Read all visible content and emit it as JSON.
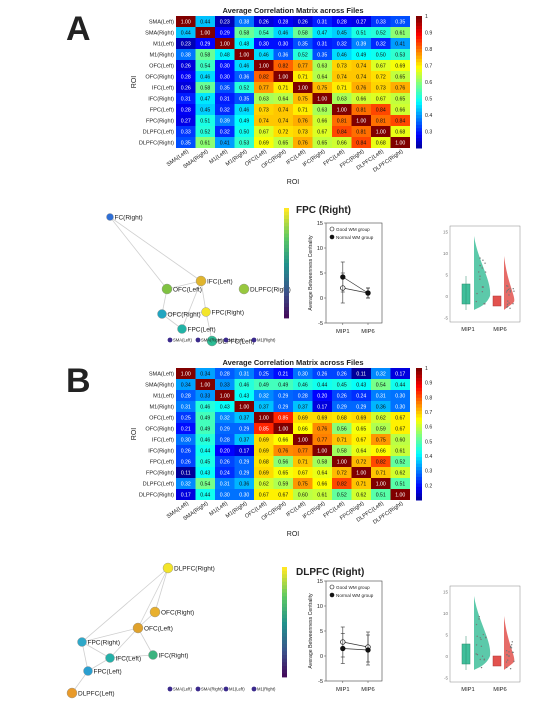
{
  "panels": [
    {
      "letter": "A",
      "heatmap": {
        "title": "Average Correlation Matrix across Files",
        "xlabel": "ROI",
        "ylabel": "ROI",
        "colorbar_ticks": [
          "1",
          "0.9",
          "0.8",
          "0.7",
          "0.6",
          "0.5",
          "0.4",
          "0.3"
        ],
        "colorbar_range": [
          0.2,
          1.0
        ]
      },
      "network": {
        "nodes": [
          {
            "label": "FC(Right)",
            "color": "#2f6fd6"
          },
          {
            "label": "IFC(Left)",
            "color": "#e0b52e"
          },
          {
            "label": "OFC(Left)",
            "color": "#7fc241"
          },
          {
            "label": "DLPFC(Right)",
            "color": "#98c83f"
          },
          {
            "label": "FPC(Right)",
            "color": "#f3e52a"
          },
          {
            "label": "OFC(Right)",
            "color": "#21a5c0"
          },
          {
            "label": "FPC(Left)",
            "color": "#22b3a6"
          },
          {
            "label": "DLPFC(Left)",
            "color": "#2cbd95"
          }
        ],
        "legend": [
          "SMA(Left)",
          "SMA(Right)",
          "M1(Left)",
          "M1(Right)"
        ]
      },
      "region_title": "FPC (Right)",
      "lineplot": {
        "ylabel": "Average Betweenness Centrality",
        "legend": [
          "Good WM group",
          "Normal WM group"
        ],
        "yticks": [
          "15",
          "10",
          "5",
          "0",
          "-5"
        ],
        "xticks": [
          "MIP1",
          "MIP6"
        ]
      },
      "raincloud": {
        "xticks": [
          "MIP1",
          "MIP6"
        ],
        "yticks": [
          "15",
          "10",
          "5",
          "0",
          "-5"
        ]
      }
    },
    {
      "letter": "B",
      "heatmap": {
        "title": "Average Correlation Matrix across Files",
        "xlabel": "ROI",
        "ylabel": "ROI",
        "colorbar_ticks": [
          "1",
          "0.9",
          "0.8",
          "0.7",
          "0.6",
          "0.5",
          "0.4",
          "0.3",
          "0.2"
        ],
        "colorbar_range": [
          0.1,
          1.0
        ]
      },
      "network": {
        "nodes": [
          {
            "label": "DLPFC(Right)",
            "color": "#f3e52a"
          },
          {
            "label": "OFC(Right)",
            "color": "#e8b02e"
          },
          {
            "label": "OFC(Left)",
            "color": "#e0a22c"
          },
          {
            "label": "FPC(Right)",
            "color": "#2fa8c8"
          },
          {
            "label": "IFC(Left)",
            "color": "#26b0a8"
          },
          {
            "label": "IFC(Right)",
            "color": "#3cb37f"
          },
          {
            "label": "FPC(Left)",
            "color": "#2a9fd0"
          },
          {
            "label": "DLPFC(Left)",
            "color": "#e89a2a"
          }
        ],
        "legend": [
          "SMA(Left)",
          "SMA(Right)",
          "M1(Left)",
          "M1(Right)"
        ]
      },
      "region_title": "DLPFC (Right)",
      "lineplot": {
        "ylabel": "Average Betweenness Centrality",
        "legend": [
          "Good WM group",
          "Normal WM group"
        ],
        "yticks": [
          "15",
          "10",
          "5",
          "0",
          "-5"
        ],
        "xticks": [
          "MIP1",
          "MIP6"
        ]
      },
      "raincloud": {
        "xticks": [
          "MIP1",
          "MIP6"
        ],
        "yticks": [
          "15",
          "10",
          "5",
          "0",
          "-5"
        ]
      }
    }
  ],
  "chart_data": [
    {
      "type": "heatmap",
      "title": "Average Correlation Matrix across Files",
      "xlabel": "ROI",
      "ylabel": "ROI",
      "labels": [
        "SMA(Left)",
        "SMA(Right)",
        "M1(Left)",
        "M1(Right)",
        "OFC(Left)",
        "OFC(Right)",
        "IFC(Left)",
        "IFC(Right)",
        "FPC(Left)",
        "FPC(Right)",
        "DLPFC(Left)",
        "DLPFC(Right)"
      ],
      "values": [
        [
          1.0,
          0.44,
          0.23,
          0.38,
          0.26,
          0.28,
          0.26,
          0.31,
          0.28,
          0.27,
          0.33,
          0.35
        ],
        [
          0.44,
          1.0,
          0.29,
          0.58,
          0.54,
          0.46,
          0.58,
          0.47,
          0.45,
          0.51,
          0.52,
          0.61
        ],
        [
          0.23,
          0.29,
          1.0,
          0.48,
          0.3,
          0.3,
          0.35,
          0.31,
          0.32,
          0.39,
          0.32,
          0.41
        ],
        [
          0.38,
          0.58,
          0.48,
          1.0,
          0.46,
          0.36,
          0.52,
          0.35,
          0.46,
          0.49,
          0.5,
          0.53
        ],
        [
          0.26,
          0.54,
          0.3,
          0.46,
          1.0,
          0.82,
          0.77,
          0.63,
          0.73,
          0.74,
          0.67,
          0.69
        ],
        [
          0.28,
          0.46,
          0.3,
          0.36,
          0.82,
          1.0,
          0.71,
          0.64,
          0.74,
          0.74,
          0.72,
          0.65
        ],
        [
          0.26,
          0.58,
          0.35,
          0.52,
          0.77,
          0.71,
          1.0,
          0.75,
          0.71,
          0.76,
          0.73,
          0.76
        ],
        [
          0.31,
          0.47,
          0.31,
          0.35,
          0.63,
          0.64,
          0.75,
          1.0,
          0.63,
          0.66,
          0.67,
          0.65
        ],
        [
          0.28,
          0.45,
          0.32,
          0.46,
          0.73,
          0.74,
          0.71,
          0.63,
          1.0,
          0.81,
          0.84,
          0.66
        ],
        [
          0.27,
          0.51,
          0.39,
          0.49,
          0.74,
          0.74,
          0.76,
          0.66,
          0.81,
          1.0,
          0.81,
          0.84
        ],
        [
          0.33,
          0.52,
          0.32,
          0.5,
          0.67,
          0.72,
          0.73,
          0.67,
          0.84,
          0.81,
          1.0,
          0.68
        ],
        [
          0.35,
          0.61,
          0.41,
          0.53,
          0.69,
          0.65,
          0.76,
          0.65,
          0.66,
          0.84,
          0.68,
          1.0
        ]
      ],
      "colorbar_range": [
        0.2,
        1.0
      ]
    },
    {
      "type": "heatmap",
      "title": "Average Correlation Matrix across Files",
      "xlabel": "ROI",
      "ylabel": "ROI",
      "labels": [
        "SMA(Left)",
        "SMA(Right)",
        "M1(Left)",
        "M1(Right)",
        "OFC(Left)",
        "OFC(Right)",
        "IFC(Left)",
        "IFC(Right)",
        "FPC(Left)",
        "FPC(Right)",
        "DLPFC(Left)",
        "DLPFC(Right)"
      ],
      "values": [
        [
          1.0,
          0.34,
          0.28,
          0.31,
          0.25,
          0.21,
          0.3,
          0.26,
          0.26,
          0.11,
          0.32,
          0.17
        ],
        [
          0.34,
          1.0,
          0.33,
          0.46,
          0.49,
          0.49,
          0.46,
          0.44,
          0.45,
          0.43,
          0.54,
          0.44
        ],
        [
          0.28,
          0.33,
          1.0,
          0.43,
          0.32,
          0.29,
          0.28,
          0.2,
          0.26,
          0.24,
          0.31,
          0.3
        ],
        [
          0.31,
          0.46,
          0.43,
          1.0,
          0.37,
          0.29,
          0.37,
          0.17,
          0.29,
          0.29,
          0.36,
          0.3
        ],
        [
          0.25,
          0.49,
          0.32,
          0.37,
          1.0,
          0.85,
          0.69,
          0.69,
          0.68,
          0.69,
          0.62,
          0.67
        ],
        [
          0.21,
          0.49,
          0.29,
          0.29,
          0.85,
          1.0,
          0.66,
          0.76,
          0.56,
          0.65,
          0.59,
          0.67
        ],
        [
          0.3,
          0.46,
          0.28,
          0.37,
          0.69,
          0.66,
          1.0,
          0.77,
          0.71,
          0.67,
          0.75,
          0.6
        ],
        [
          0.26,
          0.44,
          0.2,
          0.17,
          0.69,
          0.76,
          0.77,
          1.0,
          0.58,
          0.64,
          0.66,
          0.61
        ],
        [
          0.26,
          0.45,
          0.26,
          0.29,
          0.68,
          0.56,
          0.71,
          0.58,
          1.0,
          0.72,
          0.82,
          0.52
        ],
        [
          0.11,
          0.43,
          0.24,
          0.29,
          0.69,
          0.65,
          0.67,
          0.64,
          0.72,
          1.0,
          0.71,
          0.62
        ],
        [
          0.32,
          0.54,
          0.31,
          0.36,
          0.62,
          0.59,
          0.75,
          0.66,
          0.82,
          0.71,
          1.0,
          0.51
        ],
        [
          0.17,
          0.44,
          0.3,
          0.3,
          0.67,
          0.67,
          0.6,
          0.61,
          0.52,
          0.62,
          0.51,
          1.0
        ]
      ],
      "colorbar_range": [
        0.1,
        1.0
      ]
    },
    {
      "type": "line",
      "title": "FPC (Right)",
      "x": [
        "MIP1",
        "MIP6"
      ],
      "ylabel": "Average Betweenness Centrality",
      "ylim": [
        -5,
        15
      ],
      "series": [
        {
          "name": "Good WM group",
          "values": [
            2.0,
            1.0
          ],
          "err": [
            3.0,
            1.0
          ]
        },
        {
          "name": "Normal WM group",
          "values": [
            4.2,
            1.0
          ],
          "err": [
            3.0,
            1.0
          ]
        }
      ]
    },
    {
      "type": "line",
      "title": "DLPFC (Right)",
      "x": [
        "MIP1",
        "MIP6"
      ],
      "ylabel": "Average Betweenness Centrality",
      "ylim": [
        -5,
        15
      ],
      "series": [
        {
          "name": "Good WM group",
          "values": [
            2.8,
            1.8
          ],
          "err": [
            3.0,
            3.0
          ]
        },
        {
          "name": "Normal WM group",
          "values": [
            1.5,
            1.2
          ],
          "err": [
            3.0,
            3.0
          ]
        }
      ]
    }
  ]
}
